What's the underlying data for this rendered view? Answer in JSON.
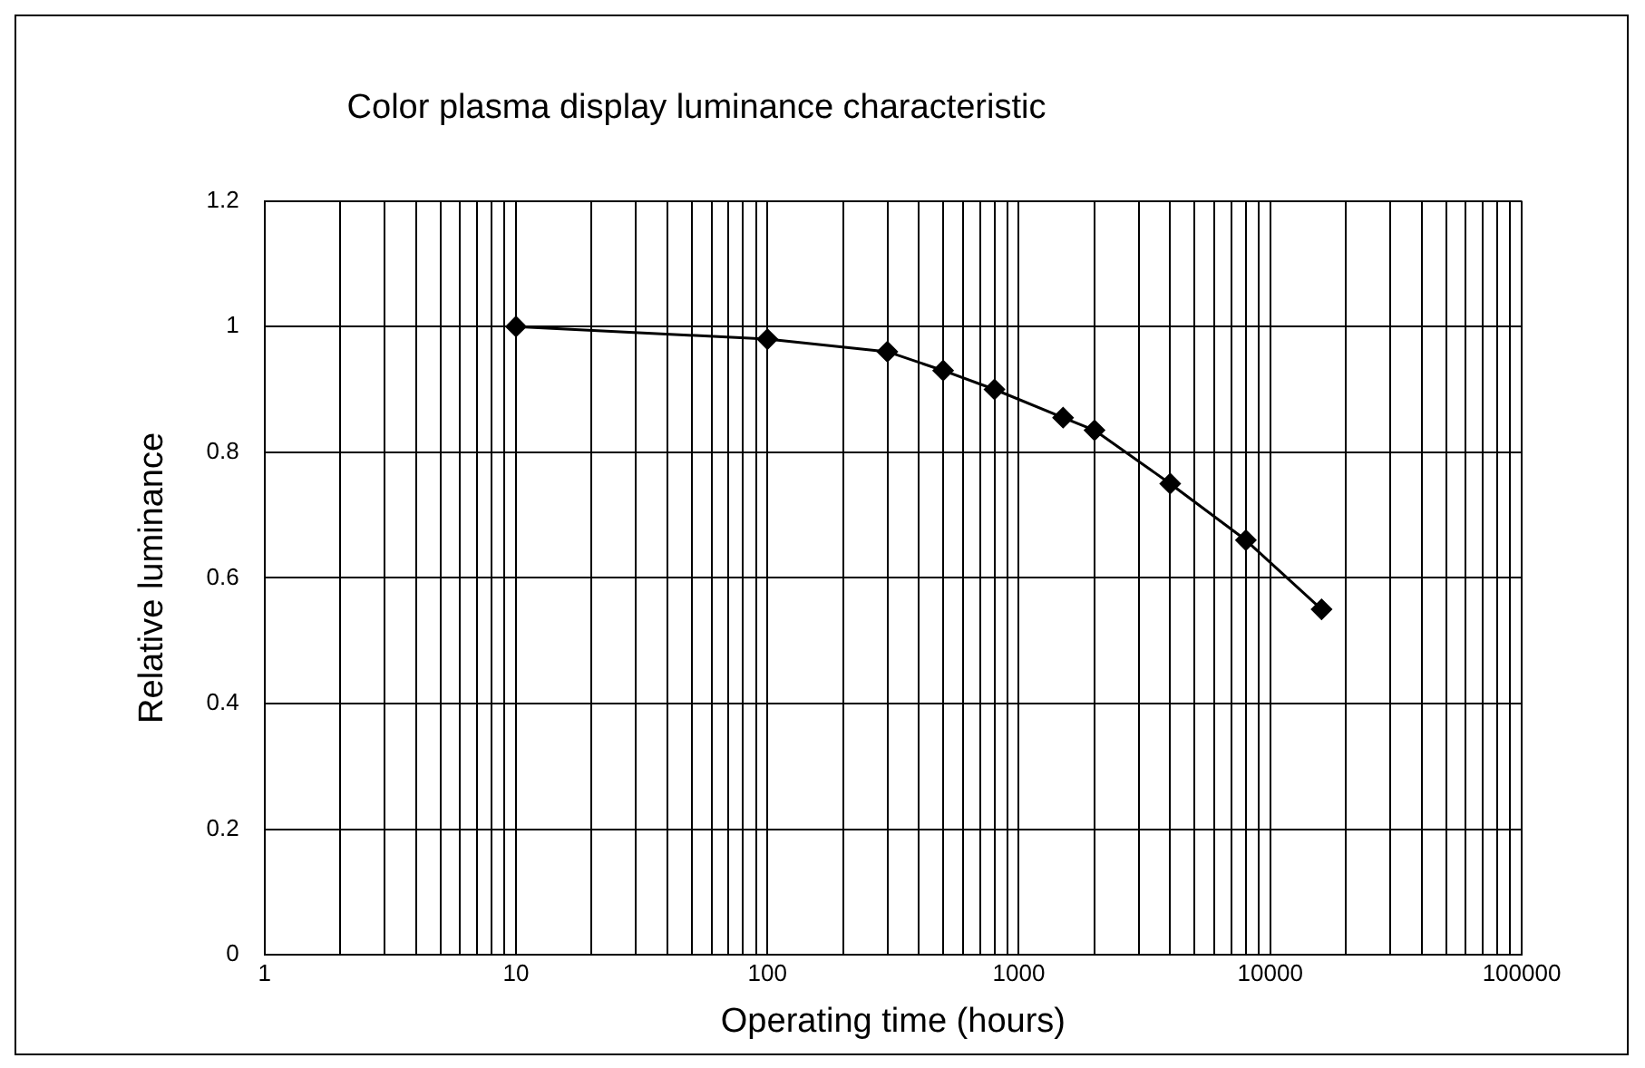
{
  "chart_data": {
    "type": "line",
    "title": "Color plasma display luminance characteristic",
    "xlabel": "Operating time (hours)",
    "ylabel": "Relative luminance",
    "x": [
      10,
      100,
      300,
      500,
      800,
      1500,
      2000,
      4000,
      8000,
      16000
    ],
    "series": [
      {
        "color": "#000000",
        "values": [
          1.0,
          0.98,
          0.96,
          0.93,
          0.9,
          0.855,
          0.835,
          0.75,
          0.66,
          0.55
        ]
      }
    ],
    "log": "x",
    "xlim": [
      1,
      100000
    ],
    "ylim": [
      0,
      1.2
    ],
    "xticks": [
      1,
      {
        "value": 2,
        "label": null
      },
      {
        "value": 3,
        "label": null
      },
      {
        "value": 4,
        "label": null
      },
      {
        "value": 5,
        "label": null
      },
      {
        "value": 6,
        "label": null
      },
      {
        "value": 7,
        "label": null
      },
      {
        "value": 8,
        "label": null
      },
      {
        "value": 9,
        "label": null
      },
      10,
      {
        "value": 20,
        "label": null
      },
      {
        "value": 30,
        "label": null
      },
      {
        "value": 40,
        "label": null
      },
      {
        "value": 50,
        "label": null
      },
      {
        "value": 60,
        "label": null
      },
      {
        "value": 70,
        "label": null
      },
      {
        "value": 80,
        "label": null
      },
      {
        "value": 90,
        "label": null
      },
      100,
      {
        "value": 200,
        "label": null
      },
      {
        "value": 300,
        "label": null
      },
      {
        "value": 400,
        "label": null
      },
      {
        "value": 500,
        "label": null
      },
      {
        "value": 600,
        "label": null
      },
      {
        "value": 700,
        "label": null
      },
      {
        "value": 800,
        "label": null
      },
      {
        "value": 900,
        "label": null
      },
      1000,
      {
        "value": 2000,
        "label": null
      },
      {
        "value": 3000,
        "label": null
      },
      {
        "value": 4000,
        "label": null
      },
      {
        "value": 5000,
        "label": null
      },
      {
        "value": 6000,
        "label": null
      },
      {
        "value": 7000,
        "label": null
      },
      {
        "value": 8000,
        "label": null
      },
      {
        "value": 9000,
        "label": null
      },
      10000,
      {
        "value": 20000,
        "label": null
      },
      {
        "value": 30000,
        "label": null
      },
      {
        "value": 40000,
        "label": null
      },
      {
        "value": 50000,
        "label": null
      },
      {
        "value": 60000,
        "label": null
      },
      {
        "value": 70000,
        "label": null
      },
      {
        "value": 80000,
        "label": null
      },
      {
        "value": 90000,
        "label": null
      },
      100000
    ],
    "yticks": [
      0,
      0.2,
      0.4,
      0.6,
      0.8,
      1,
      1.2
    ],
    "grid": true,
    "marker": "diamond",
    "line_style": "solid"
  }
}
